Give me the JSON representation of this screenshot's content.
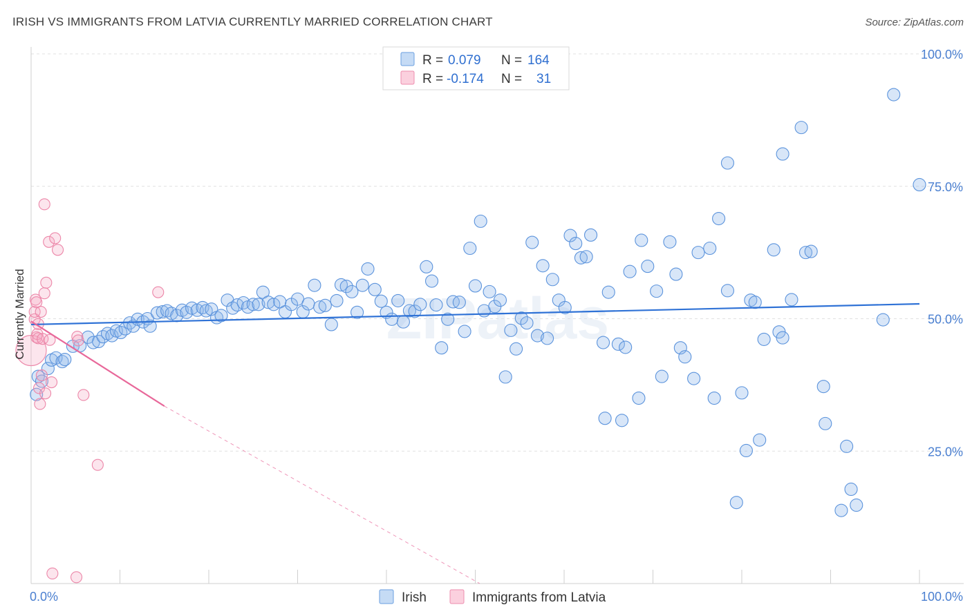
{
  "title": "IRISH VS IMMIGRANTS FROM LATVIA CURRENTLY MARRIED CORRELATION CHART",
  "source": "Source: ZipAtlas.com",
  "watermark": "ZIPatlas",
  "legend": {
    "rows": [
      {
        "r_label": "R =",
        "r_value": "0.079",
        "n_label": "N =",
        "n_value": "164",
        "color": "#8fb8ea"
      },
      {
        "r_label": "R =",
        "r_value": "-0.174",
        "n_label": "N =",
        "n_value": "31",
        "color": "#f4a9c2"
      }
    ]
  },
  "colors": {
    "irish_fill": "rgba(143,184,234,0.35)",
    "irish_stroke": "#5b93dc",
    "irish_line": "#2f72d6",
    "latvia_fill": "rgba(244,169,194,0.30)",
    "latvia_stroke": "#ec86a8",
    "latvia_line": "#e8689a",
    "grid": "#e0e0e0",
    "tick_text": "#4a7fd0"
  },
  "chart_data": {
    "type": "scatter",
    "xlabel": "",
    "ylabel": "Currently Married",
    "xlim": [
      0,
      100
    ],
    "ylim": [
      0,
      100
    ],
    "x_tick_labels": [
      "0.0%",
      "100.0%"
    ],
    "y_ticks": [
      25,
      50,
      75,
      100
    ],
    "y_tick_labels": [
      "25.0%",
      "50.0%",
      "75.0%",
      "100.0%"
    ],
    "grid": true,
    "legend_position": "top-center",
    "series": [
      {
        "name": "Irish",
        "trend": {
          "x": [
            0,
            100
          ],
          "y": [
            48.9,
            52.8
          ]
        },
        "points": [
          [
            0.6,
            35.7
          ],
          [
            0.8,
            39.1
          ],
          [
            1.2,
            38.2
          ],
          [
            1.9,
            40.6
          ],
          [
            2.3,
            42.2
          ],
          [
            2.8,
            42.6
          ],
          [
            3.5,
            41.9
          ],
          [
            3.8,
            42.3
          ],
          [
            4.7,
            44.8
          ],
          [
            5.5,
            44.9
          ],
          [
            6.4,
            46.5
          ],
          [
            7.0,
            45.5
          ],
          [
            7.6,
            45.7
          ],
          [
            8.1,
            46.6
          ],
          [
            8.6,
            47.2
          ],
          [
            9.1,
            46.8
          ],
          [
            9.6,
            47.7
          ],
          [
            10.1,
            47.4
          ],
          [
            10.6,
            48.1
          ],
          [
            11.1,
            49.2
          ],
          [
            11.5,
            48.6
          ],
          [
            12.0,
            49.9
          ],
          [
            12.6,
            49.4
          ],
          [
            13.1,
            50.0
          ],
          [
            13.4,
            48.6
          ],
          [
            14.2,
            51.1
          ],
          [
            14.8,
            51.3
          ],
          [
            15.3,
            51.5
          ],
          [
            15.8,
            51.0
          ],
          [
            16.4,
            50.6
          ],
          [
            17.0,
            51.6
          ],
          [
            17.5,
            51.2
          ],
          [
            18.1,
            52.0
          ],
          [
            18.7,
            51.6
          ],
          [
            19.3,
            52.1
          ],
          [
            19.7,
            51.5
          ],
          [
            20.3,
            51.8
          ],
          [
            20.9,
            50.2
          ],
          [
            21.4,
            50.6
          ],
          [
            22.1,
            53.5
          ],
          [
            22.7,
            52.0
          ],
          [
            23.2,
            52.6
          ],
          [
            23.9,
            53.0
          ],
          [
            24.4,
            52.2
          ],
          [
            25.0,
            52.7
          ],
          [
            25.6,
            52.7
          ],
          [
            26.1,
            55.0
          ],
          [
            26.7,
            53.1
          ],
          [
            27.3,
            52.7
          ],
          [
            28.0,
            53.2
          ],
          [
            28.6,
            51.3
          ],
          [
            29.3,
            52.7
          ],
          [
            30.0,
            53.7
          ],
          [
            30.6,
            51.3
          ],
          [
            31.2,
            52.8
          ],
          [
            31.9,
            56.3
          ],
          [
            32.5,
            52.2
          ],
          [
            33.1,
            52.5
          ],
          [
            33.8,
            48.9
          ],
          [
            34.4,
            53.4
          ],
          [
            34.9,
            56.4
          ],
          [
            35.5,
            56.1
          ],
          [
            36.1,
            55.1
          ],
          [
            36.7,
            51.2
          ],
          [
            37.3,
            56.3
          ],
          [
            37.9,
            59.4
          ],
          [
            38.7,
            55.5
          ],
          [
            39.4,
            53.3
          ],
          [
            40.0,
            51.2
          ],
          [
            40.6,
            49.9
          ],
          [
            41.3,
            53.4
          ],
          [
            41.9,
            49.4
          ],
          [
            42.6,
            51.5
          ],
          [
            43.2,
            51.4
          ],
          [
            43.8,
            52.7
          ],
          [
            44.5,
            59.8
          ],
          [
            45.1,
            57.1
          ],
          [
            45.6,
            52.6
          ],
          [
            46.2,
            44.5
          ],
          [
            46.9,
            49.9
          ],
          [
            47.5,
            53.2
          ],
          [
            48.2,
            53.1
          ],
          [
            48.8,
            47.6
          ],
          [
            49.4,
            63.3
          ],
          [
            50.0,
            56.2
          ],
          [
            50.6,
            68.4
          ],
          [
            51.0,
            51.5
          ],
          [
            51.6,
            55.1
          ],
          [
            52.2,
            52.3
          ],
          [
            52.8,
            53.5
          ],
          [
            53.4,
            39.0
          ],
          [
            54.0,
            47.8
          ],
          [
            54.6,
            44.3
          ],
          [
            55.2,
            50.1
          ],
          [
            55.8,
            49.2
          ],
          [
            56.4,
            64.4
          ],
          [
            57.0,
            46.8
          ],
          [
            57.6,
            60.0
          ],
          [
            58.1,
            46.3
          ],
          [
            58.7,
            57.4
          ],
          [
            59.4,
            53.5
          ],
          [
            60.1,
            52.1
          ],
          [
            60.7,
            65.7
          ],
          [
            61.3,
            64.2
          ],
          [
            61.9,
            61.5
          ],
          [
            62.5,
            61.7
          ],
          [
            63.0,
            65.8
          ],
          [
            64.4,
            45.5
          ],
          [
            64.6,
            31.2
          ],
          [
            65.0,
            55.0
          ],
          [
            66.1,
            45.2
          ],
          [
            66.5,
            30.8
          ],
          [
            66.9,
            44.6
          ],
          [
            67.4,
            58.9
          ],
          [
            68.4,
            35.0
          ],
          [
            68.7,
            64.8
          ],
          [
            69.4,
            59.9
          ],
          [
            70.4,
            55.2
          ],
          [
            71.0,
            39.1
          ],
          [
            71.9,
            64.5
          ],
          [
            72.6,
            58.4
          ],
          [
            73.1,
            44.5
          ],
          [
            73.6,
            42.8
          ],
          [
            74.6,
            38.7
          ],
          [
            75.1,
            62.5
          ],
          [
            76.4,
            63.3
          ],
          [
            76.9,
            35.0
          ],
          [
            77.4,
            68.9
          ],
          [
            78.4,
            79.4
          ],
          [
            78.4,
            55.3
          ],
          [
            79.4,
            15.3
          ],
          [
            80.0,
            36.0
          ],
          [
            80.5,
            25.1
          ],
          [
            81.0,
            53.5
          ],
          [
            81.5,
            53.1
          ],
          [
            82.0,
            27.1
          ],
          [
            82.5,
            46.1
          ],
          [
            83.6,
            63.0
          ],
          [
            84.2,
            47.5
          ],
          [
            84.6,
            46.4
          ],
          [
            84.6,
            81.1
          ],
          [
            85.6,
            53.6
          ],
          [
            86.7,
            86.1
          ],
          [
            87.2,
            62.5
          ],
          [
            87.8,
            62.7
          ],
          [
            89.2,
            37.2
          ],
          [
            89.4,
            30.2
          ],
          [
            91.2,
            13.8
          ],
          [
            91.8,
            25.9
          ],
          [
            92.3,
            17.8
          ],
          [
            92.9,
            14.8
          ],
          [
            95.9,
            49.8
          ],
          [
            97.1,
            92.3
          ],
          [
            100.0,
            75.3
          ]
        ]
      },
      {
        "name": "Immigrants from Latvia",
        "trend": {
          "x": [
            0,
            15
          ],
          "y": [
            49.5,
            33.5
          ]
        },
        "trend_extension": {
          "x": [
            15,
            50.5
          ],
          "y": [
            33.5,
            -4.5
          ]
        },
        "points": [
          [
            0.0,
            44.0
          ],
          [
            0.4,
            49.9
          ],
          [
            0.4,
            51.3
          ],
          [
            0.5,
            53.6
          ],
          [
            0.6,
            53.1
          ],
          [
            0.6,
            46.5
          ],
          [
            0.7,
            47.1
          ],
          [
            0.8,
            46.3
          ],
          [
            0.8,
            49.0
          ],
          [
            0.9,
            36.9
          ],
          [
            1.0,
            33.9
          ],
          [
            1.1,
            51.3
          ],
          [
            1.2,
            39.3
          ],
          [
            1.3,
            46.2
          ],
          [
            1.5,
            71.6
          ],
          [
            1.5,
            54.8
          ],
          [
            1.6,
            35.9
          ],
          [
            1.7,
            56.8
          ],
          [
            2.0,
            64.5
          ],
          [
            2.1,
            46.0
          ],
          [
            2.3,
            38.0
          ],
          [
            2.4,
            1.9
          ],
          [
            2.7,
            65.2
          ],
          [
            3.0,
            63.0
          ],
          [
            5.1,
            1.2
          ],
          [
            5.2,
            46.6
          ],
          [
            5.3,
            45.9
          ],
          [
            5.9,
            35.6
          ],
          [
            7.5,
            22.4
          ],
          [
            14.3,
            55.0
          ]
        ]
      }
    ]
  },
  "bottom_legend": {
    "items": [
      {
        "label": "Irish",
        "color": "#8fb8ea"
      },
      {
        "label": "Immigrants from Latvia",
        "color": "#f4a9c2"
      }
    ]
  }
}
